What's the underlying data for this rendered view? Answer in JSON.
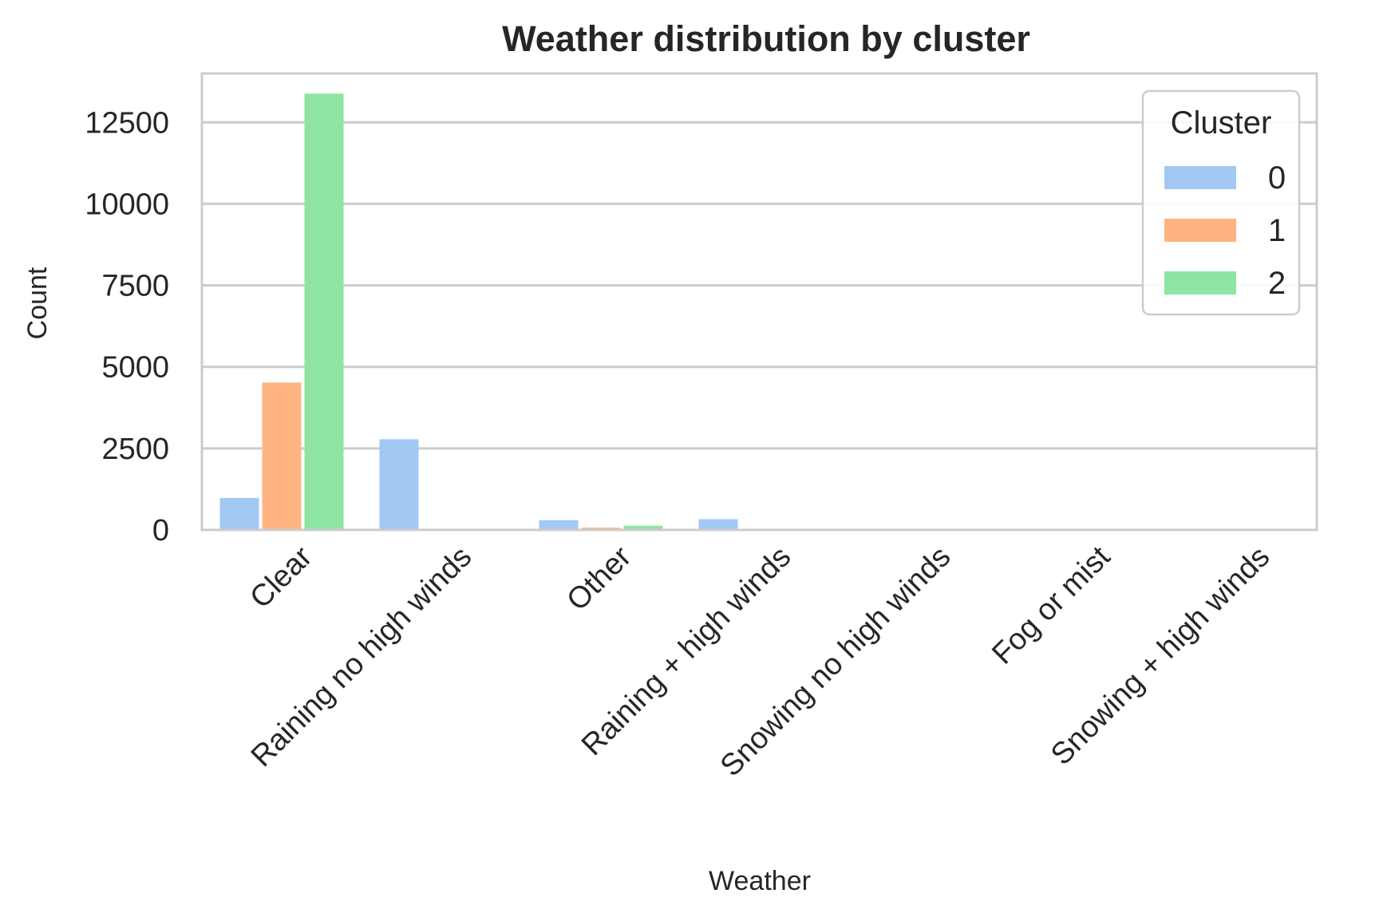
{
  "chart_data": {
    "type": "bar",
    "title": "Weather distribution by cluster",
    "xlabel": "Weather",
    "ylabel": "Count",
    "categories": [
      "Clear",
      "Raining no high winds",
      "Other",
      "Raining + high winds",
      "Snowing no high winds",
      "Fog or mist",
      "Snowing + high winds"
    ],
    "series": [
      {
        "name": "0",
        "color": "#a1c9f4",
        "values": [
          980,
          2780,
          300,
          330,
          20,
          20,
          10
        ]
      },
      {
        "name": "1",
        "color": "#ffb482",
        "values": [
          4520,
          20,
          70,
          10,
          5,
          5,
          2
        ]
      },
      {
        "name": "2",
        "color": "#8de5a1",
        "values": [
          13380,
          20,
          130,
          10,
          5,
          5,
          2
        ]
      }
    ],
    "ylim": [
      0,
      14000
    ],
    "yticks": [
      0,
      2500,
      5000,
      7500,
      10000,
      12500
    ],
    "grid": "horizontal",
    "legend": {
      "title": "Cluster",
      "placement": "top-right"
    }
  }
}
